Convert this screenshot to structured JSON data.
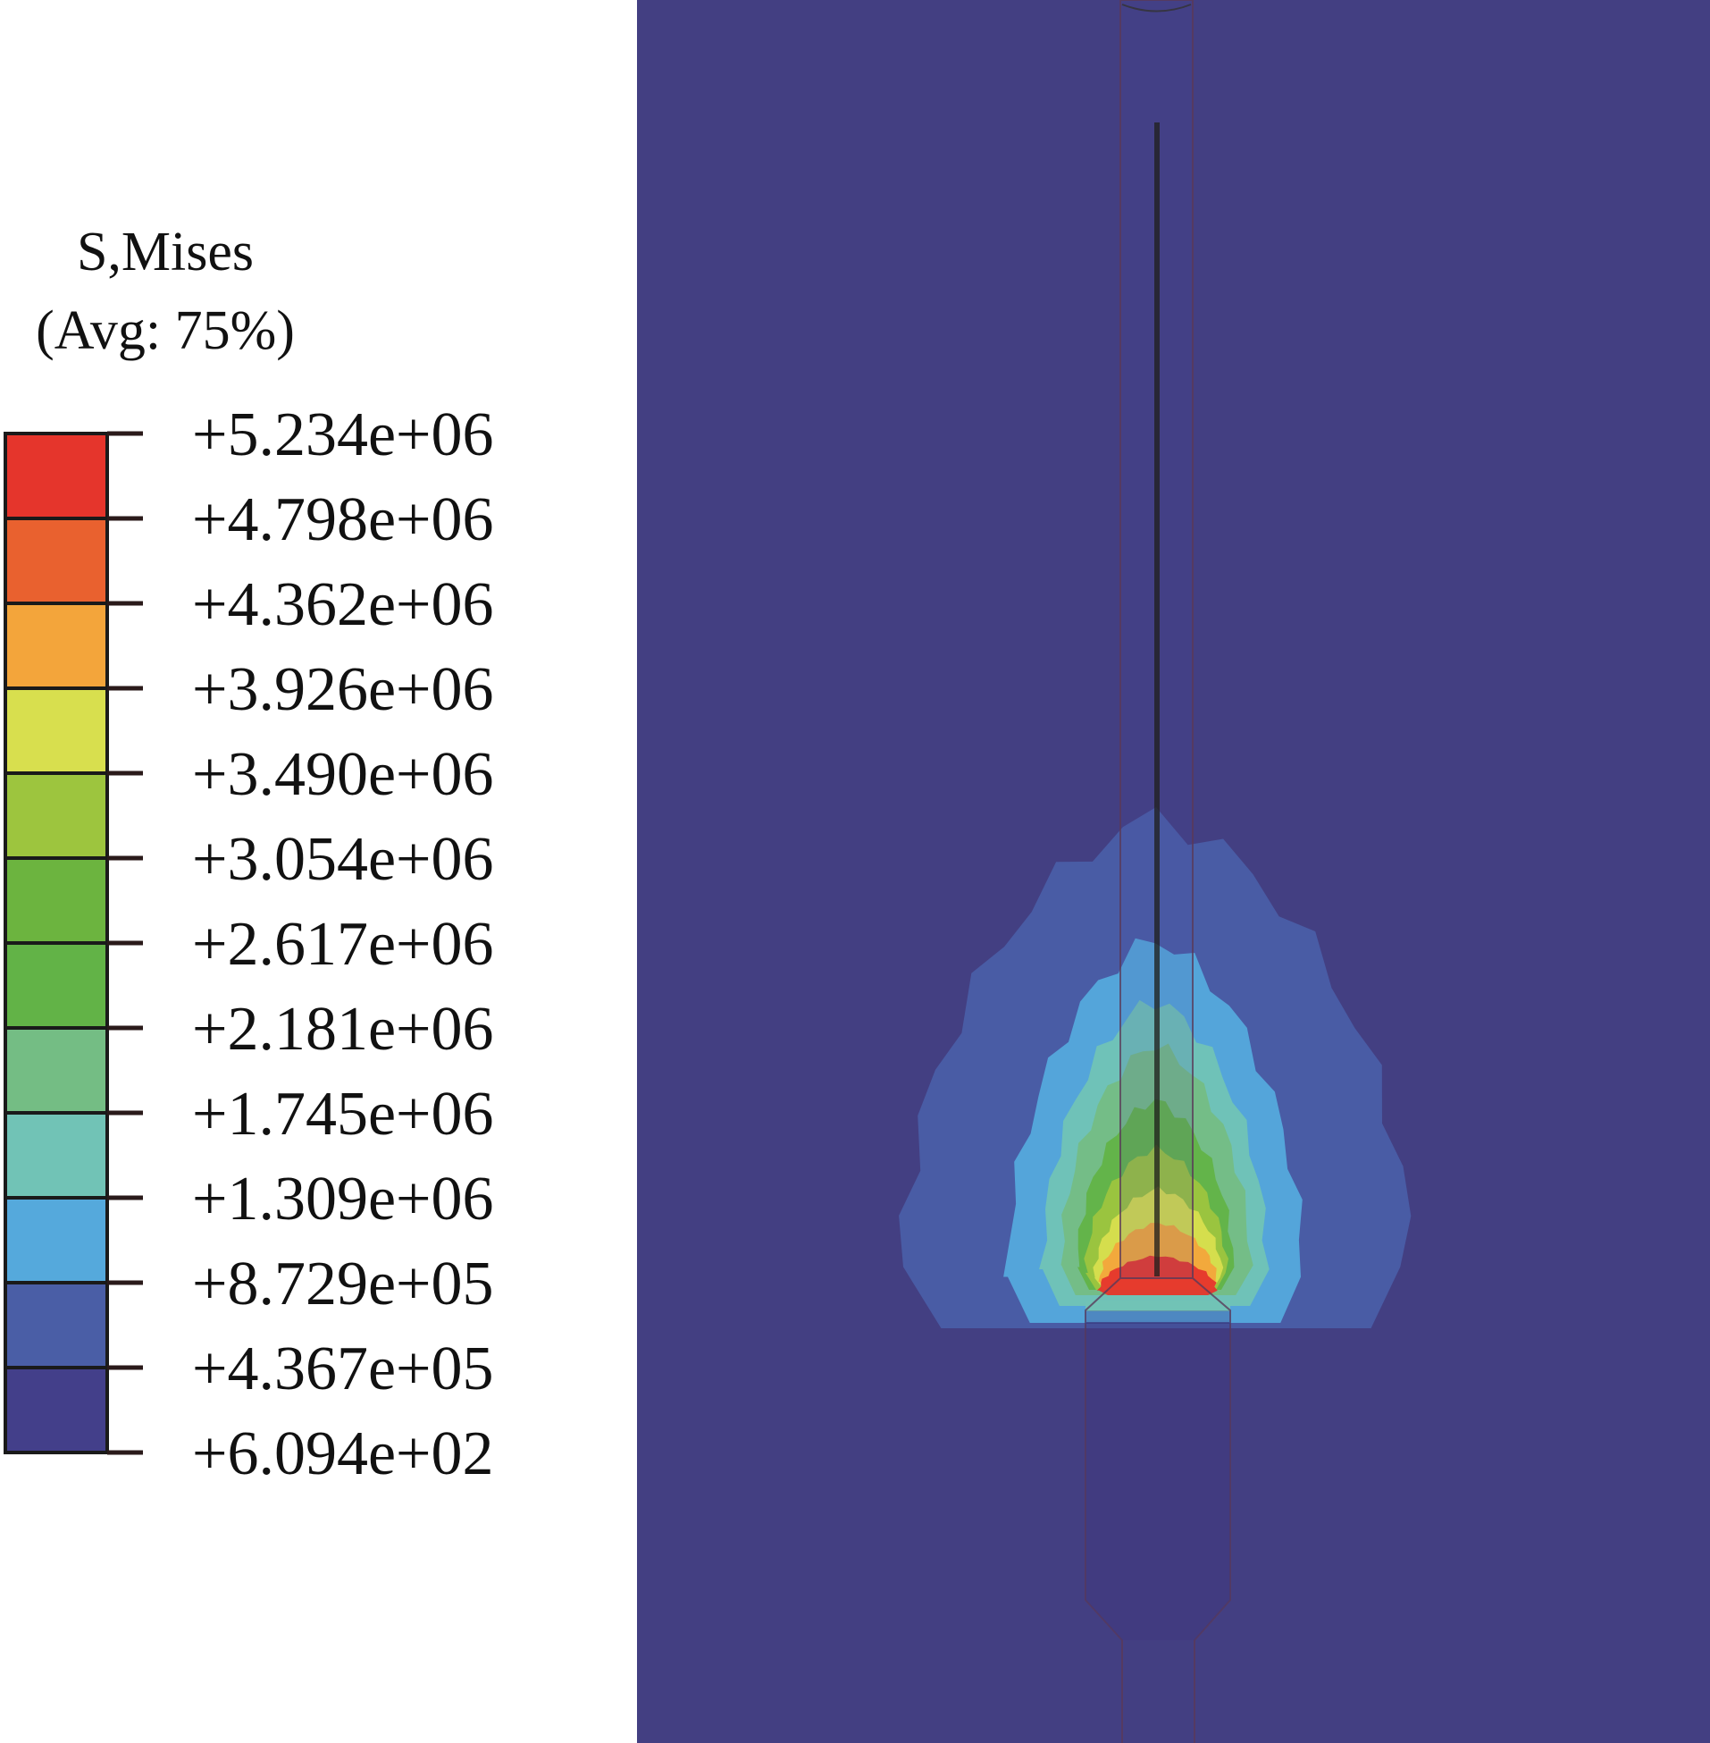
{
  "legend": {
    "title_line1": "S,Mises",
    "title_line2": "(Avg: 75%)",
    "labels": [
      "+5.234e+06",
      "+4.798e+06",
      "+4.362e+06",
      "+3.926e+06",
      "+3.490e+06",
      "+3.054e+06",
      "+2.617e+06",
      "+2.181e+06",
      "+1.745e+06",
      "+1.309e+06",
      "+8.729e+05",
      "+4.367e+05",
      "+6.094e+02"
    ]
  },
  "colors": {
    "background": "#433f82",
    "band_colors": [
      "#e5352c",
      "#e9612f",
      "#f3a53b",
      "#d8df4e",
      "#9dc53e",
      "#6cb43f",
      "#62b347",
      "#74bd84",
      "#71c3b6",
      "#55a9dc",
      "#4a5ea6",
      "#433f8a"
    ]
  },
  "chart_data": {
    "type": "heatmap",
    "title": "S,Mises (Avg: 75%)",
    "quantity": "S, Mises",
    "averaging": "75%",
    "levels": [
      5234000,
      4798000,
      4362000,
      3926000,
      3490000,
      3054000,
      2617000,
      2181000,
      1745000,
      1309000,
      872900,
      436700,
      609.4
    ],
    "range": [
      609.4,
      5234000
    ]
  }
}
